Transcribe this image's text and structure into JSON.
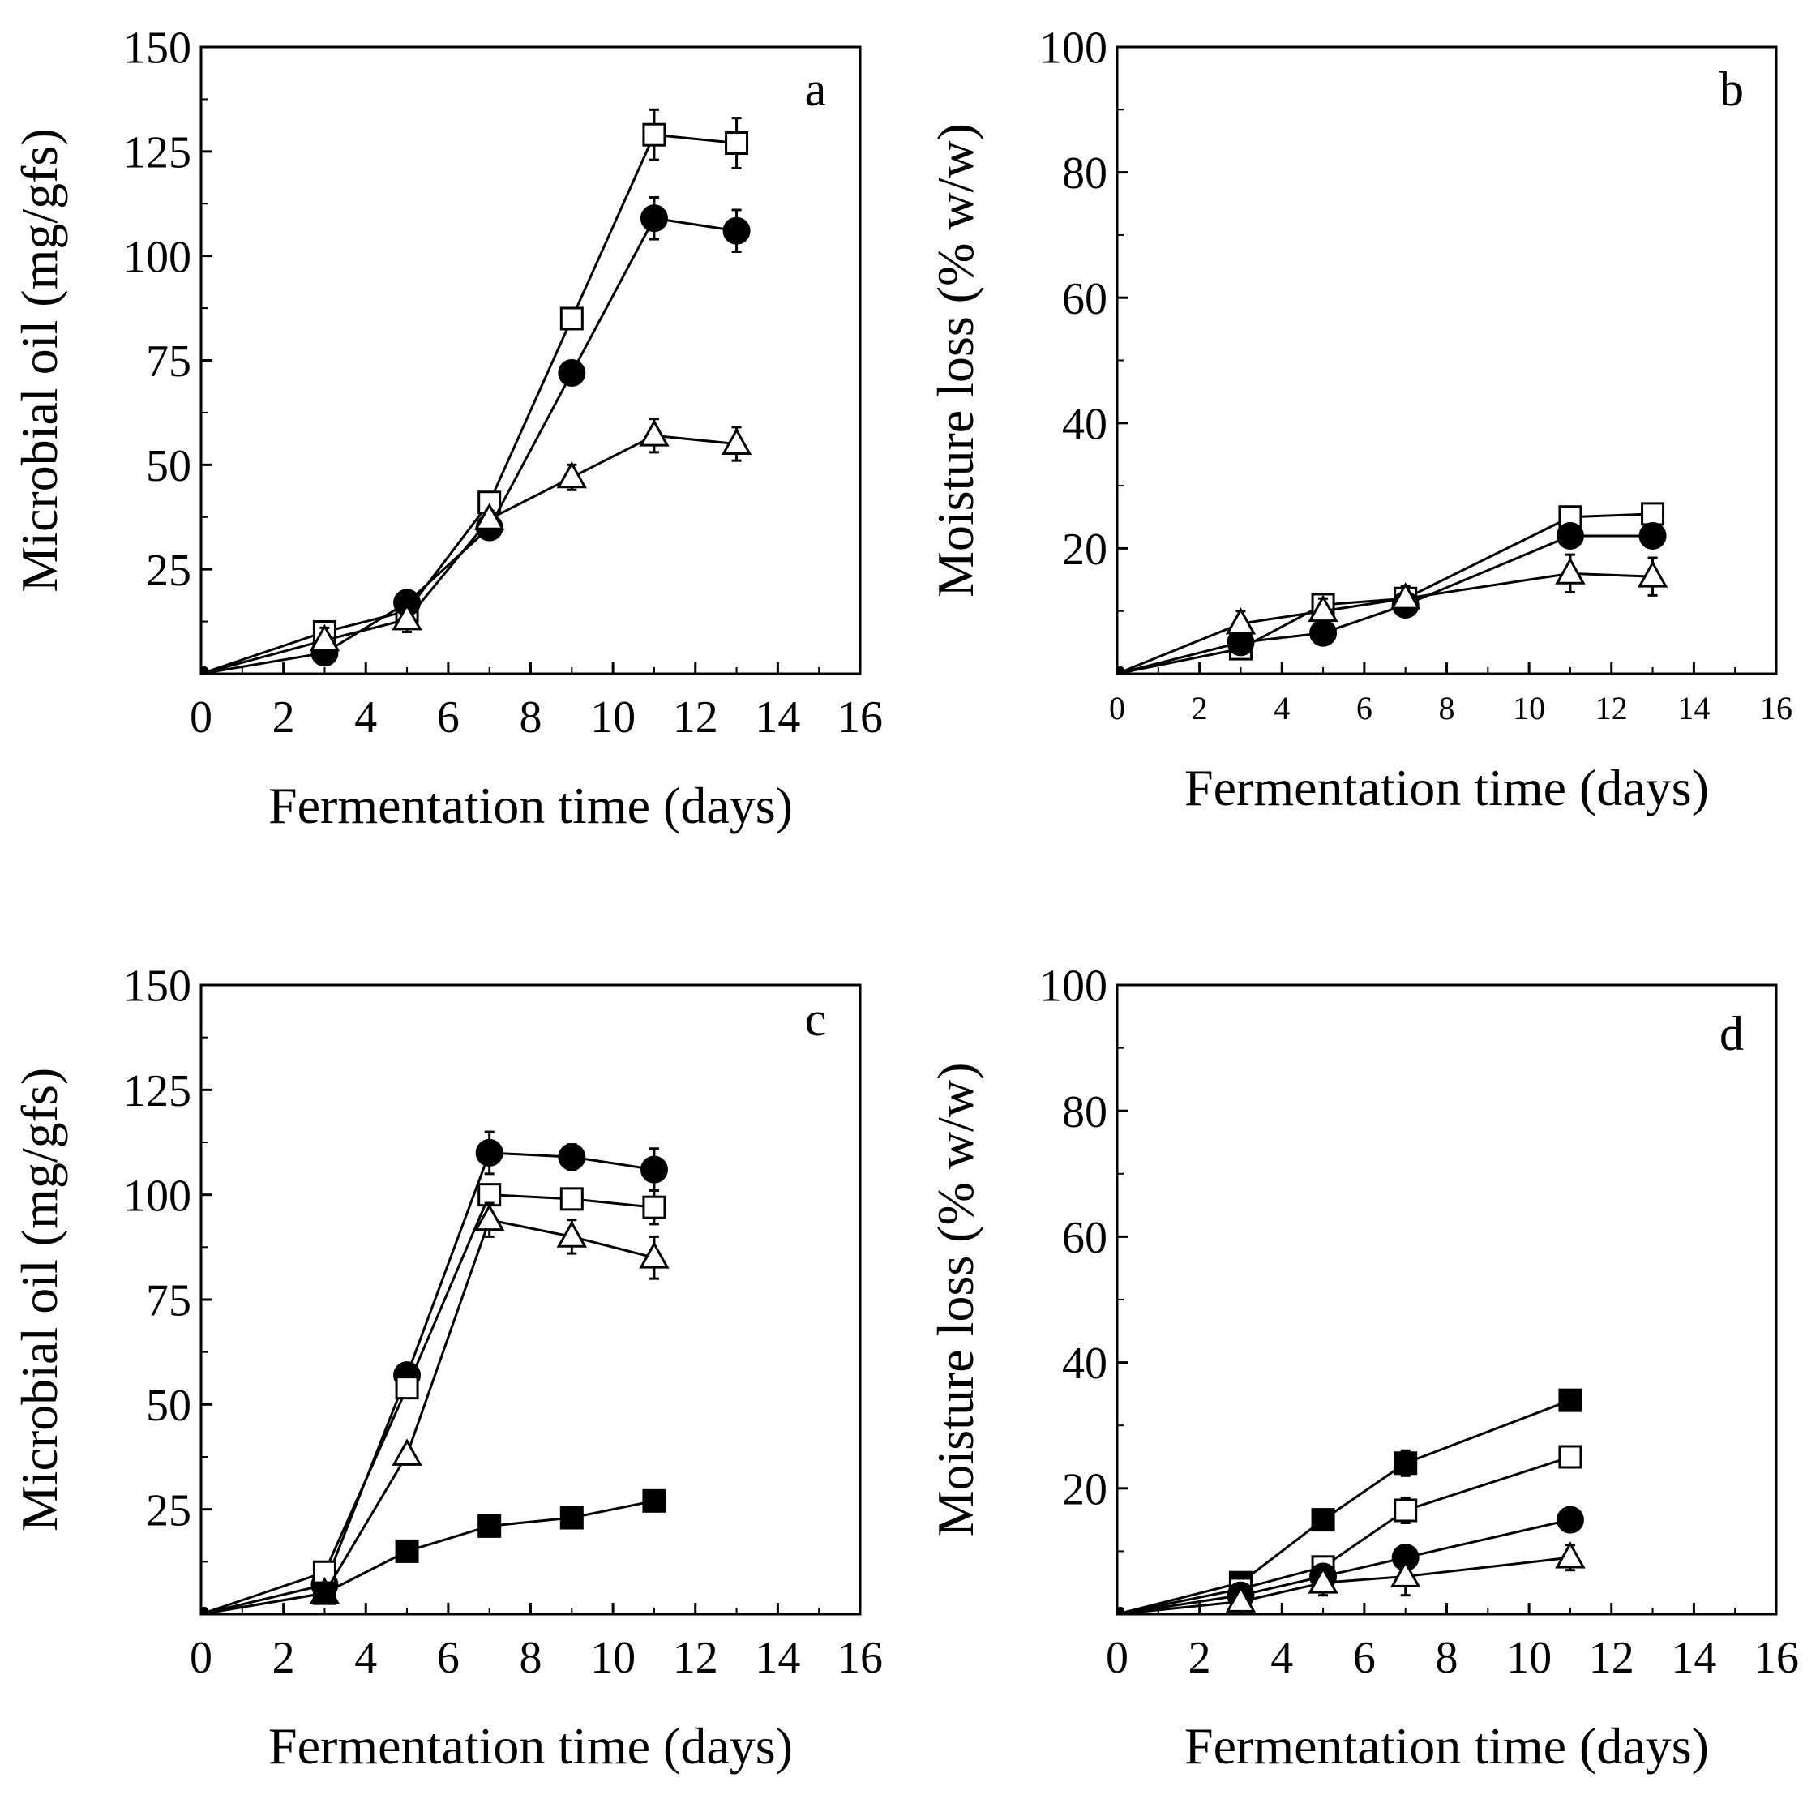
{
  "chart_data": [
    {
      "panel": "a",
      "type": "line",
      "xlabel": "Fermentation time (days)",
      "ylabel": "Microbial oil (mg/gfs)",
      "xlim": [
        0,
        16
      ],
      "ylim": [
        0,
        150
      ],
      "xticks": [
        0,
        2,
        4,
        6,
        8,
        10,
        12,
        14,
        16
      ],
      "yticks": [
        25,
        50,
        75,
        100,
        125,
        150
      ],
      "series": [
        {
          "name": "open-square",
          "marker": "square-open",
          "x": [
            0,
            3,
            5,
            7,
            9,
            11,
            13
          ],
          "values": [
            0,
            10,
            15,
            41,
            85,
            129,
            127
          ],
          "err": [
            0,
            0,
            0,
            0,
            0,
            6,
            6
          ]
        },
        {
          "name": "filled-circle",
          "marker": "circle-filled",
          "x": [
            0,
            3,
            5,
            7,
            9,
            11,
            13
          ],
          "values": [
            0,
            5,
            17,
            35,
            72,
            109,
            106
          ],
          "err": [
            0,
            0,
            0,
            0,
            0,
            5,
            5
          ]
        },
        {
          "name": "open-triangle",
          "marker": "triangle-open",
          "x": [
            0,
            3,
            5,
            7,
            9,
            11,
            13
          ],
          "values": [
            0,
            8,
            13,
            37,
            47,
            57,
            55
          ],
          "err": [
            0,
            3,
            3,
            2,
            3,
            4,
            4
          ]
        }
      ]
    },
    {
      "panel": "b",
      "type": "line",
      "xlabel": "Fermentation time (days)",
      "ylabel": "Moisture loss (% w/w)",
      "xlim": [
        0,
        16
      ],
      "ylim": [
        0,
        100
      ],
      "xticks": [
        0,
        2,
        4,
        6,
        8,
        10,
        12,
        14,
        16
      ],
      "yticks": [
        20,
        40,
        60,
        80,
        100
      ],
      "series": [
        {
          "name": "open-square",
          "marker": "square-open",
          "x": [
            0,
            3,
            5,
            7,
            11,
            13
          ],
          "values": [
            0,
            4,
            11,
            12,
            25,
            25.5
          ],
          "err": [
            0,
            0,
            1,
            1,
            1,
            1
          ]
        },
        {
          "name": "filled-circle",
          "marker": "circle-filled",
          "x": [
            0,
            3,
            5,
            7,
            11,
            13
          ],
          "values": [
            0,
            5,
            6.5,
            11,
            22,
            22
          ],
          "err": [
            0,
            0,
            0,
            0,
            0,
            0
          ]
        },
        {
          "name": "open-triangle",
          "marker": "triangle-open",
          "x": [
            0,
            3,
            5,
            7,
            11,
            13
          ],
          "values": [
            0,
            8,
            10,
            12,
            16,
            15.5
          ],
          "err": [
            0,
            2,
            2,
            2,
            3,
            3
          ]
        }
      ]
    },
    {
      "panel": "c",
      "type": "line",
      "xlabel": "Fermentation time (days)",
      "ylabel": "Microbial oil (mg/gfs)",
      "xlim": [
        0,
        16
      ],
      "ylim": [
        0,
        150
      ],
      "xticks": [
        0,
        2,
        4,
        6,
        8,
        10,
        12,
        14,
        16
      ],
      "yticks": [
        25,
        50,
        75,
        100,
        125,
        150
      ],
      "series": [
        {
          "name": "filled-circle",
          "marker": "circle-filled",
          "x": [
            0,
            3,
            5,
            7,
            9,
            11
          ],
          "values": [
            0,
            7,
            57,
            110,
            109,
            106
          ],
          "err": [
            0,
            0,
            0,
            5,
            3,
            5
          ]
        },
        {
          "name": "open-square",
          "marker": "square-open",
          "x": [
            0,
            3,
            5,
            7,
            9,
            11
          ],
          "values": [
            0,
            10,
            54,
            100,
            99,
            97
          ],
          "err": [
            0,
            0,
            0,
            0,
            0,
            4
          ]
        },
        {
          "name": "open-triangle",
          "marker": "triangle-open",
          "x": [
            0,
            3,
            5,
            7,
            9,
            11
          ],
          "values": [
            0,
            5,
            38,
            94,
            90,
            85
          ],
          "err": [
            0,
            0,
            0,
            4,
            4,
            5
          ]
        },
        {
          "name": "filled-square",
          "marker": "square-filled",
          "x": [
            0,
            3,
            5,
            7,
            9,
            11
          ],
          "values": [
            0,
            5,
            15,
            21,
            23,
            27
          ],
          "err": [
            0,
            0,
            0,
            0,
            0,
            0
          ]
        }
      ]
    },
    {
      "panel": "d",
      "type": "line",
      "xlabel": "Fermentation time (days)",
      "ylabel": "Moisture loss (% w/w)",
      "xlim": [
        0,
        16
      ],
      "ylim": [
        0,
        100
      ],
      "xticks": [
        0,
        2,
        4,
        6,
        8,
        10,
        12,
        14,
        16
      ],
      "yticks": [
        20,
        40,
        60,
        80,
        100
      ],
      "series": [
        {
          "name": "filled-square",
          "marker": "square-filled",
          "x": [
            0,
            3,
            5,
            7,
            11
          ],
          "values": [
            0,
            5,
            15,
            24,
            34
          ],
          "err": [
            0,
            0,
            0,
            2,
            0
          ]
        },
        {
          "name": "open-square",
          "marker": "square-open",
          "x": [
            0,
            3,
            5,
            7,
            11
          ],
          "values": [
            0,
            4,
            7.5,
            16.5,
            25
          ],
          "err": [
            0,
            0,
            0,
            2,
            0
          ]
        },
        {
          "name": "filled-circle",
          "marker": "circle-filled",
          "x": [
            0,
            3,
            5,
            7,
            11
          ],
          "values": [
            0,
            3,
            6,
            9,
            15
          ],
          "err": [
            0,
            0,
            0,
            0,
            0
          ]
        },
        {
          "name": "open-triangle",
          "marker": "triangle-open",
          "x": [
            0,
            3,
            5,
            7,
            11
          ],
          "values": [
            0,
            2,
            5,
            6,
            9
          ],
          "err": [
            0,
            2,
            2,
            3,
            2
          ]
        }
      ]
    }
  ]
}
